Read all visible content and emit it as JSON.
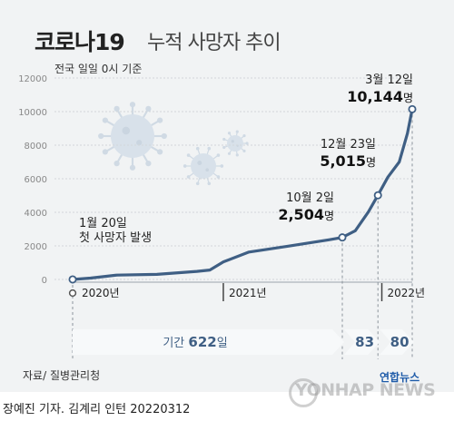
{
  "title": "코로나19",
  "title_rest": "누적 사망자 추이",
  "subtitle": "전국 일일 0시 기준",
  "source": "자료/ 질병관리청",
  "footer": "장예진 기자. 김계리 인턴  20220312",
  "logo": "연합뉴스",
  "watermark": "YONHAP NEWS",
  "colors": {
    "line": "#3f5f84",
    "arrow": "#f7f9fa",
    "arrow_text": "#3f5f84",
    "axis_text": "#888888",
    "background": "#f1f3f4"
  },
  "chart_data": {
    "type": "line",
    "ylim": [
      0,
      12000
    ],
    "yticks": [
      "0",
      "2000",
      "4000",
      "6000",
      "8000",
      "10000",
      "12000"
    ],
    "ytick_values": [
      0,
      2000,
      4000,
      6000,
      8000,
      10000,
      12000
    ],
    "x_start": "2020-01-20",
    "x_end": "2022-03-12",
    "year_labels": [
      {
        "date": "2020-01-20",
        "label": "2020년"
      },
      {
        "date": "2021-01-01",
        "label": "2021년"
      },
      {
        "date": "2022-01-01",
        "label": "2022년"
      }
    ],
    "series": [
      {
        "x": [
          "2020-01-20",
          "2020-03-01",
          "2020-05-01",
          "2020-08-01",
          "2020-11-01",
          "2020-12-01",
          "2021-01-01",
          "2021-03-01",
          "2021-06-01",
          "2021-09-01",
          "2021-10-02",
          "2021-11-01",
          "2021-12-01",
          "2021-12-23",
          "2022-01-15",
          "2022-02-10",
          "2022-03-01",
          "2022-03-12"
        ],
        "y": [
          1,
          80,
          260,
          300,
          480,
          560,
          1050,
          1630,
          1990,
          2360,
          2504,
          2900,
          4020,
          5015,
          6100,
          7000,
          8700,
          10144
        ]
      }
    ],
    "annotations": [
      {
        "date": "2020-01-20",
        "value": 1,
        "line1": "1월 20일",
        "line2": "첫 사망자 발생"
      },
      {
        "date": "2021-10-02",
        "value": 2504,
        "line1": "10월 2일",
        "number": "2,504",
        "unit": "명"
      },
      {
        "date": "2021-12-23",
        "value": 5015,
        "line1": "12월 23일",
        "number": "5,015",
        "unit": "명"
      },
      {
        "date": "2022-03-12",
        "value": 10144,
        "line1": "3월 12일",
        "number": "10,144",
        "unit": "명"
      }
    ],
    "periods": [
      {
        "label": "기간",
        "number": "622",
        "unit": "일",
        "from": "2020-01-20",
        "to": "2021-10-02"
      },
      {
        "number": "83",
        "from": "2021-10-02",
        "to": "2021-12-23"
      },
      {
        "number": "80",
        "from": "2021-12-23",
        "to": "2022-03-12"
      }
    ]
  }
}
